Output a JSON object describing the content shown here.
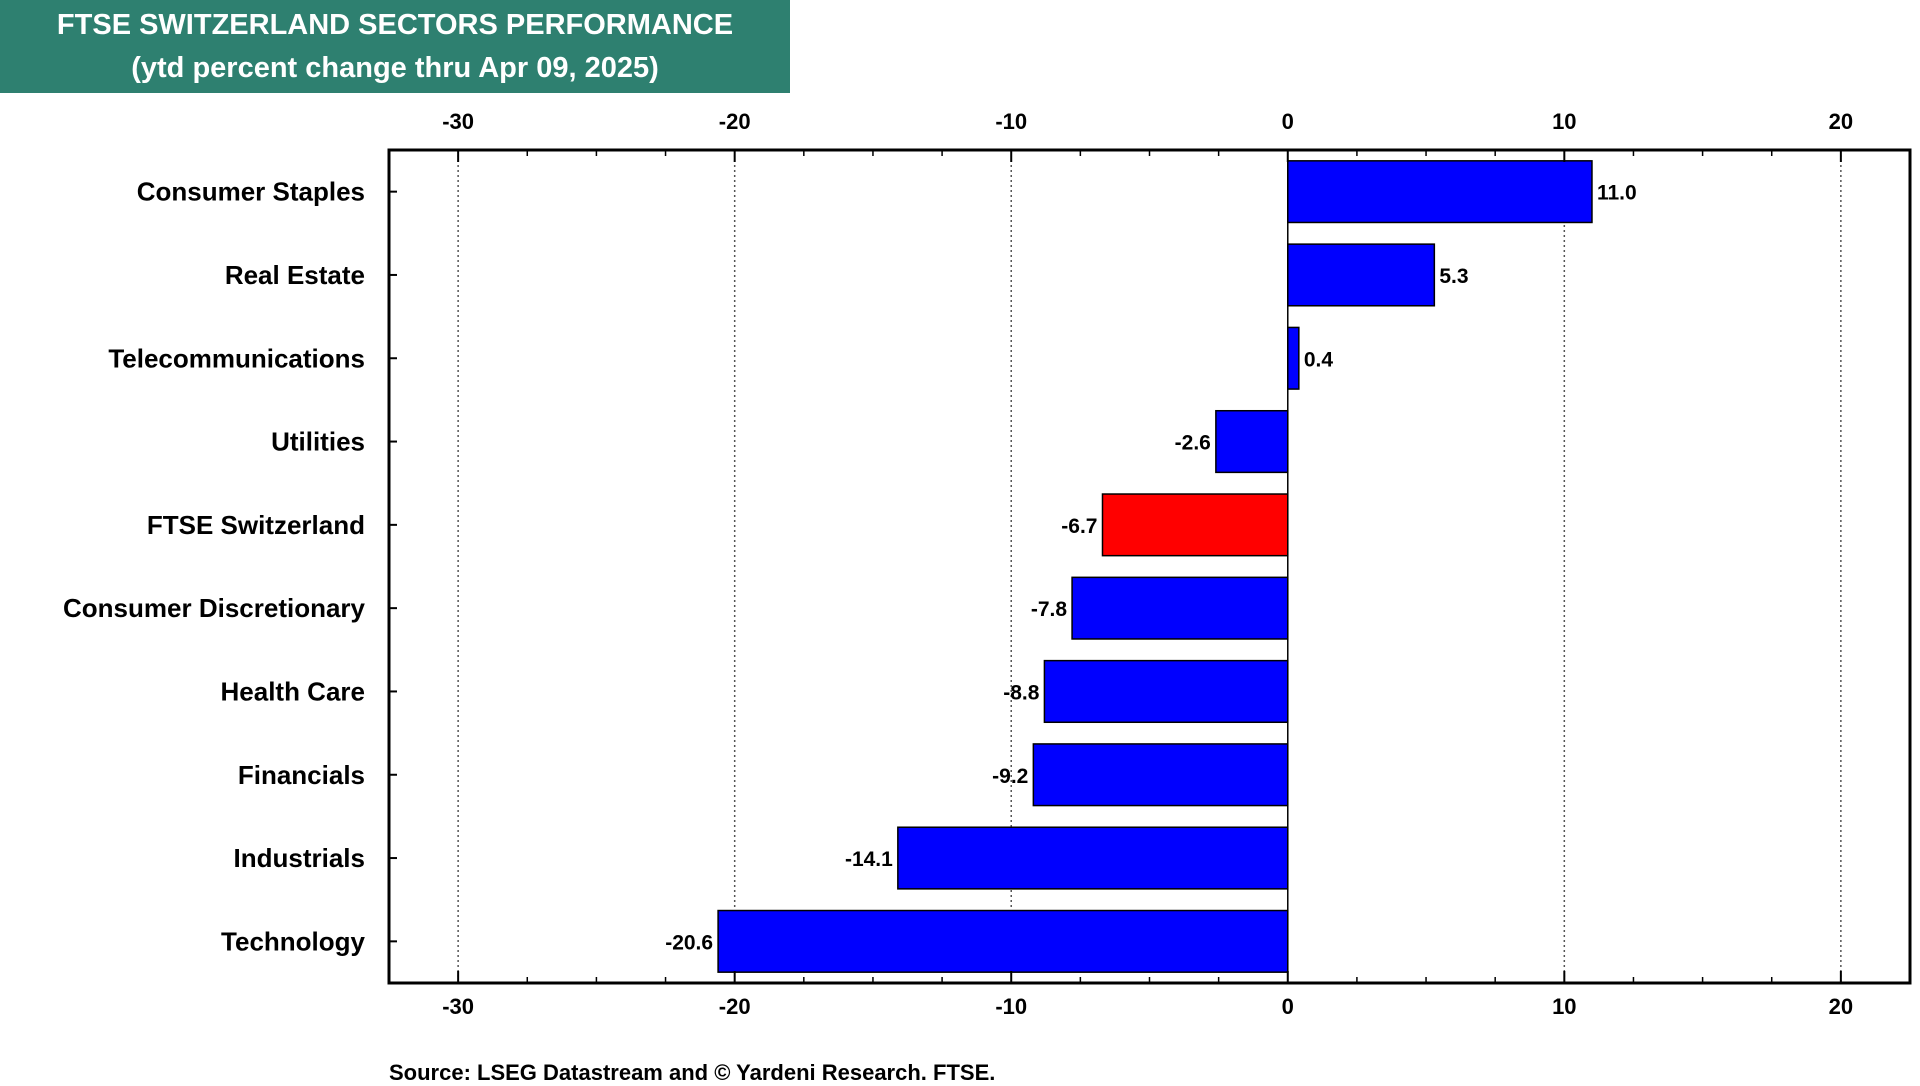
{
  "chart_data": {
    "type": "bar",
    "orientation": "horizontal",
    "title": "FTSE SWITZERLAND SECTORS PERFORMANCE",
    "subtitle": "(ytd percent change thru Apr 09, 2025)",
    "categories": [
      "Consumer Staples",
      "Real Estate",
      "Telecommunications",
      "Utilities",
      "FTSE Switzerland",
      "Consumer Discretionary",
      "Health Care",
      "Financials",
      "Industrials",
      "Technology"
    ],
    "values": [
      11.0,
      5.3,
      0.4,
      -2.6,
      -6.7,
      -7.8,
      -8.8,
      -9.2,
      -14.1,
      -20.6
    ],
    "value_labels": [
      "11.0",
      "5.3",
      "0.4",
      "-2.6",
      "-6.7",
      "-7.8",
      "-8.8",
      "-9.2",
      "-14.1",
      "-20.6"
    ],
    "colors": [
      "#0000ff",
      "#0000ff",
      "#0000ff",
      "#0000ff",
      "#ff0000",
      "#0000ff",
      "#0000ff",
      "#0000ff",
      "#0000ff",
      "#0000ff"
    ],
    "xlim": [
      -32.5,
      22.5
    ],
    "xticks": [
      -30,
      -20,
      -10,
      0,
      10,
      20
    ],
    "xtick_labels": [
      "-30",
      "-20",
      "-10",
      "0",
      "10",
      "20"
    ],
    "grid": true,
    "source": "Source: LSEG Datastream and © Yardeni Research. FTSE."
  },
  "colors": {
    "title_background": "#2e8070",
    "bar_default": "#0000ff",
    "bar_highlight": "#ff0000"
  }
}
